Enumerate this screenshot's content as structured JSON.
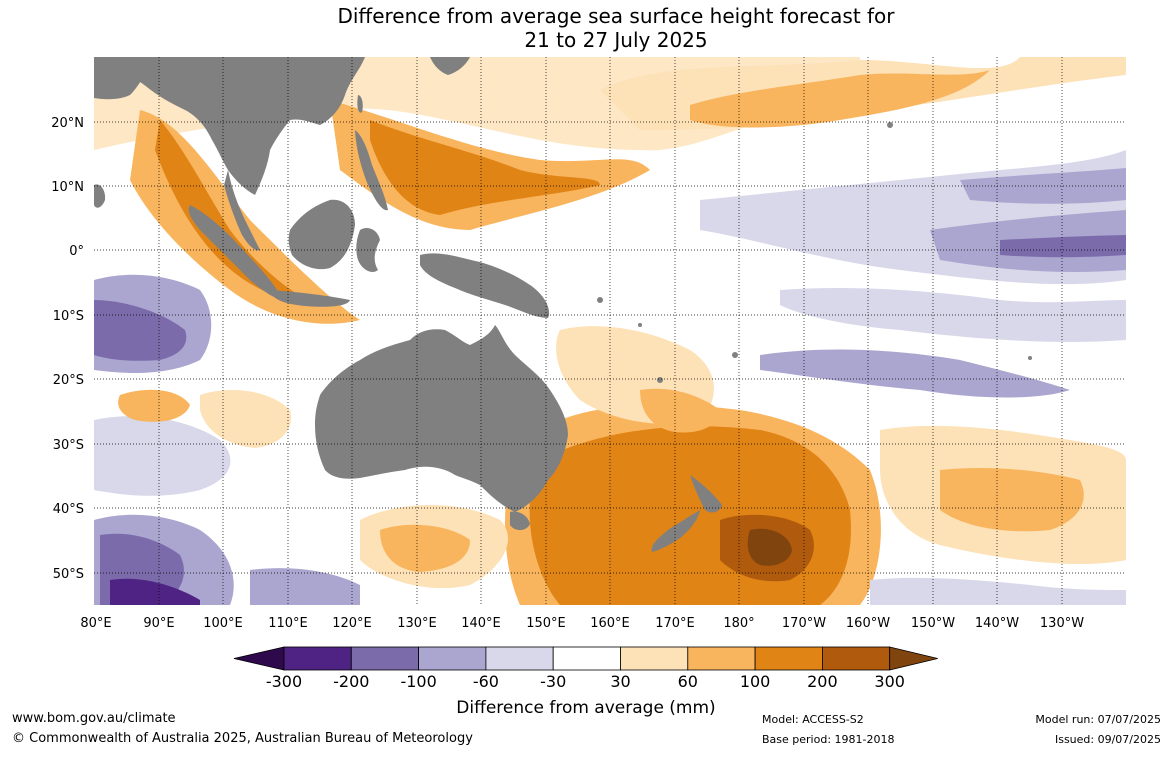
{
  "title_line1": "Difference from average sea surface height forecast for",
  "title_line2": "21 to 27 July 2025",
  "map": {
    "latitude_labels": [
      "20°N",
      "10°N",
      "0°",
      "10°S",
      "20°S",
      "30°S",
      "40°S",
      "50°S"
    ],
    "longitude_labels": [
      "80°E",
      "90°E",
      "100°E",
      "110°E",
      "120°E",
      "130°E",
      "140°E",
      "150°E",
      "160°E",
      "170°E",
      "180°",
      "170°W",
      "160°W",
      "150°W",
      "140°W",
      "130°W"
    ],
    "land_color": "#808080",
    "ocean_color": "#ffffff"
  },
  "colorbar": {
    "title": "Difference from average (mm)",
    "tick_labels": [
      "-300",
      "-200",
      "-100",
      "-60",
      "-30",
      "30",
      "60",
      "100",
      "200",
      "300"
    ],
    "colors": [
      "#2e0a4d",
      "#4f2383",
      "#7b6bab",
      "#aba6cf",
      "#d8d8ea",
      "#ffffff",
      "#fde1b7",
      "#f9b55e",
      "#e08416",
      "#b05a0d",
      "#80440e"
    ]
  },
  "footer": {
    "website": "www.bom.gov.au/climate",
    "copyright": "© Commonwealth of Australia 2025, Australian Bureau of Meteorology",
    "model": "Model: ACCESS-S2",
    "base_period": "Base period: 1981-2018",
    "model_run": "Model run: 07/07/2025",
    "issued": "Issued: 09/07/2025"
  }
}
